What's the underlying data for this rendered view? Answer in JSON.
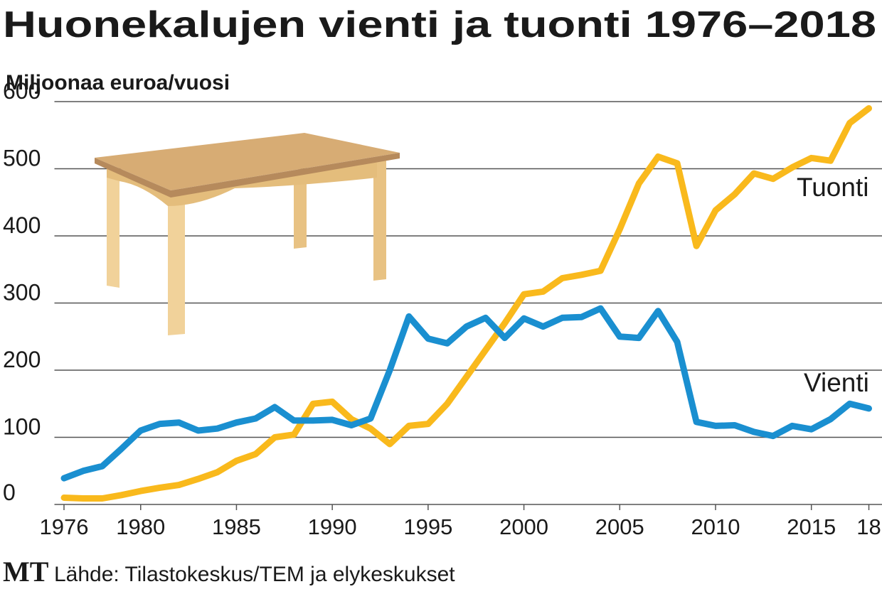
{
  "chart_data": {
    "type": "line",
    "title": "Huonekalujen vienti ja tuonti 1976–2018",
    "y_label": "Miljoonaa euroa/vuosi",
    "source": "Lähde: Tilastokeskus/TEM ja elykeskukset",
    "logo": "MT",
    "x": [
      1976,
      1977,
      1978,
      1979,
      1980,
      1981,
      1982,
      1983,
      1984,
      1985,
      1986,
      1987,
      1988,
      1989,
      1990,
      1991,
      1992,
      1993,
      1994,
      1995,
      1996,
      1997,
      1998,
      1999,
      2000,
      2001,
      2002,
      2003,
      2004,
      2005,
      2006,
      2007,
      2008,
      2009,
      2010,
      2011,
      2012,
      2013,
      2014,
      2015,
      2016,
      2017,
      2018
    ],
    "series": [
      {
        "name": "Tuonti",
        "color": "#f9b91c",
        "values": [
          10,
          9,
          9,
          14,
          20,
          25,
          29,
          38,
          48,
          65,
          75,
          100,
          104,
          150,
          153,
          127,
          113,
          90,
          117,
          120,
          150,
          190,
          230,
          270,
          313,
          317,
          337,
          342,
          348,
          410,
          478,
          518,
          508,
          385,
          438,
          462,
          493,
          485,
          502,
          516,
          512,
          568,
          590
        ]
      },
      {
        "name": "Vienti",
        "color": "#1a8fd0",
        "values": [
          39,
          50,
          57,
          83,
          110,
          120,
          122,
          110,
          113,
          122,
          128,
          145,
          125,
          125,
          126,
          118,
          128,
          200,
          280,
          247,
          240,
          265,
          278,
          248,
          277,
          265,
          278,
          279,
          292,
          250,
          248,
          288,
          242,
          123,
          117,
          118,
          108,
          102,
          117,
          112,
          127,
          150,
          143
        ]
      }
    ],
    "xlim": [
      1975.5,
      2018.5
    ],
    "xticks": [
      1976,
      1980,
      1985,
      1990,
      1995,
      2000,
      2005,
      2010,
      2015,
      {
        "value": 2018,
        "label": "18"
      }
    ],
    "ylim": [
      0,
      600
    ],
    "yticks": [
      0,
      100,
      200,
      300,
      400,
      500,
      600
    ],
    "grid": true
  }
}
